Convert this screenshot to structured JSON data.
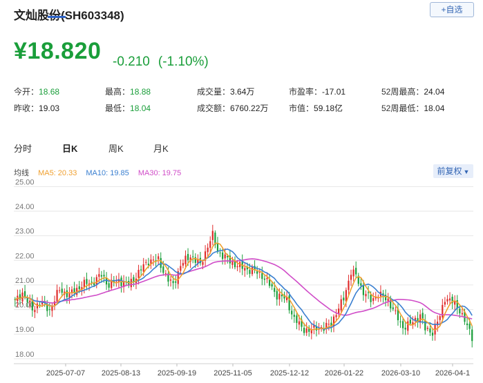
{
  "header": {
    "title": "文灿股份(SH603348)",
    "add_button": "+自选"
  },
  "quote": {
    "price": "¥18.820",
    "change": "-0.210",
    "change_pct": "(-1.10%)"
  },
  "stats": [
    {
      "label": "今开：",
      "value": "18.68",
      "green": true
    },
    {
      "label": "最高：",
      "value": "18.88",
      "green": true
    },
    {
      "label": "成交量：",
      "value": "3.64万",
      "green": false
    },
    {
      "label": "市盈率：",
      "value": "-17.01",
      "green": false
    },
    {
      "label": "52周最高：",
      "value": "24.04",
      "green": false
    },
    {
      "label": "昨收：",
      "value": "19.03",
      "green": false
    },
    {
      "label": "最低：",
      "value": "18.04",
      "green": true
    },
    {
      "label": "成交额：",
      "value": "6760.22万",
      "green": false
    },
    {
      "label": "市值：",
      "value": "59.18亿",
      "green": false
    },
    {
      "label": "52周最低：",
      "value": "18.04",
      "green": false
    }
  ],
  "tabs": [
    "分时",
    "日K",
    "周K",
    "月K"
  ],
  "active_tab": "日K",
  "ma": {
    "prefix": "均线",
    "ma5": "MA5: 20.33",
    "ma10": "MA10: 19.85",
    "ma30": "MA30: 19.75"
  },
  "adjust_button": "前复权",
  "colors": {
    "up": "#e02b2b",
    "down": "#1a9e3a",
    "ma5": "#f0a030",
    "ma10": "#3a7fd0",
    "ma30": "#d04cc8",
    "accent": "#2d63c8"
  },
  "chart_data": {
    "type": "candlestick",
    "y_ticks": [
      "25.00",
      "24.00",
      "23.00",
      "22.00",
      "21.00",
      "20.00",
      "19.00",
      "18.00"
    ],
    "ylim": [
      17.8,
      25.15
    ],
    "x_ticks": [
      "2025-07-07",
      "2025-08-13",
      "2025-09-19",
      "2025-11-05",
      "2025-12-12",
      "2026-01-22",
      "2026-03-10",
      "2026-04-1"
    ],
    "grid": true,
    "series": [
      {
        "name": "MA5",
        "color": "#f0a030"
      },
      {
        "name": "MA10",
        "color": "#3a7fd0"
      },
      {
        "name": "MA30",
        "color": "#d04cc8"
      }
    ],
    "close_anchors": [
      [
        0,
        20.3
      ],
      [
        3,
        20.7
      ],
      [
        7,
        20.0
      ],
      [
        10,
        20.3
      ],
      [
        14,
        20.0
      ],
      [
        18,
        20.8
      ],
      [
        22,
        20.6
      ],
      [
        27,
        21.0
      ],
      [
        31,
        21.1
      ],
      [
        35,
        21.4
      ],
      [
        38,
        21.0
      ],
      [
        42,
        21.2
      ],
      [
        46,
        21.0
      ],
      [
        50,
        21.5
      ],
      [
        54,
        22.0
      ],
      [
        58,
        22.0
      ],
      [
        62,
        21.2
      ],
      [
        64,
        21.0
      ],
      [
        67,
        21.8
      ],
      [
        71,
        22.2
      ],
      [
        75,
        21.8
      ],
      [
        78,
        22.6
      ],
      [
        80,
        23.0
      ],
      [
        82,
        22.4
      ],
      [
        85,
        22.1
      ],
      [
        88,
        21.9
      ],
      [
        92,
        21.7
      ],
      [
        96,
        21.6
      ],
      [
        100,
        21.4
      ],
      [
        103,
        21.0
      ],
      [
        106,
        20.6
      ],
      [
        110,
        20.4
      ],
      [
        113,
        19.6
      ],
      [
        116,
        19.3
      ],
      [
        119,
        19.1
      ],
      [
        122,
        19.3
      ],
      [
        125,
        19.2
      ],
      [
        128,
        19.5
      ],
      [
        131,
        20.0
      ],
      [
        133,
        20.5
      ],
      [
        136,
        21.5
      ],
      [
        138,
        21.4
      ],
      [
        141,
        20.7
      ],
      [
        144,
        20.4
      ],
      [
        147,
        20.6
      ],
      [
        151,
        20.4
      ],
      [
        154,
        19.8
      ],
      [
        157,
        19.3
      ],
      [
        160,
        19.4
      ],
      [
        164,
        19.8
      ],
      [
        166,
        19.2
      ],
      [
        169,
        19.1
      ],
      [
        172,
        19.7
      ],
      [
        174,
        20.5
      ],
      [
        177,
        20.3
      ],
      [
        180,
        20.0
      ],
      [
        183,
        19.3
      ],
      [
        185,
        18.9
      ]
    ]
  }
}
